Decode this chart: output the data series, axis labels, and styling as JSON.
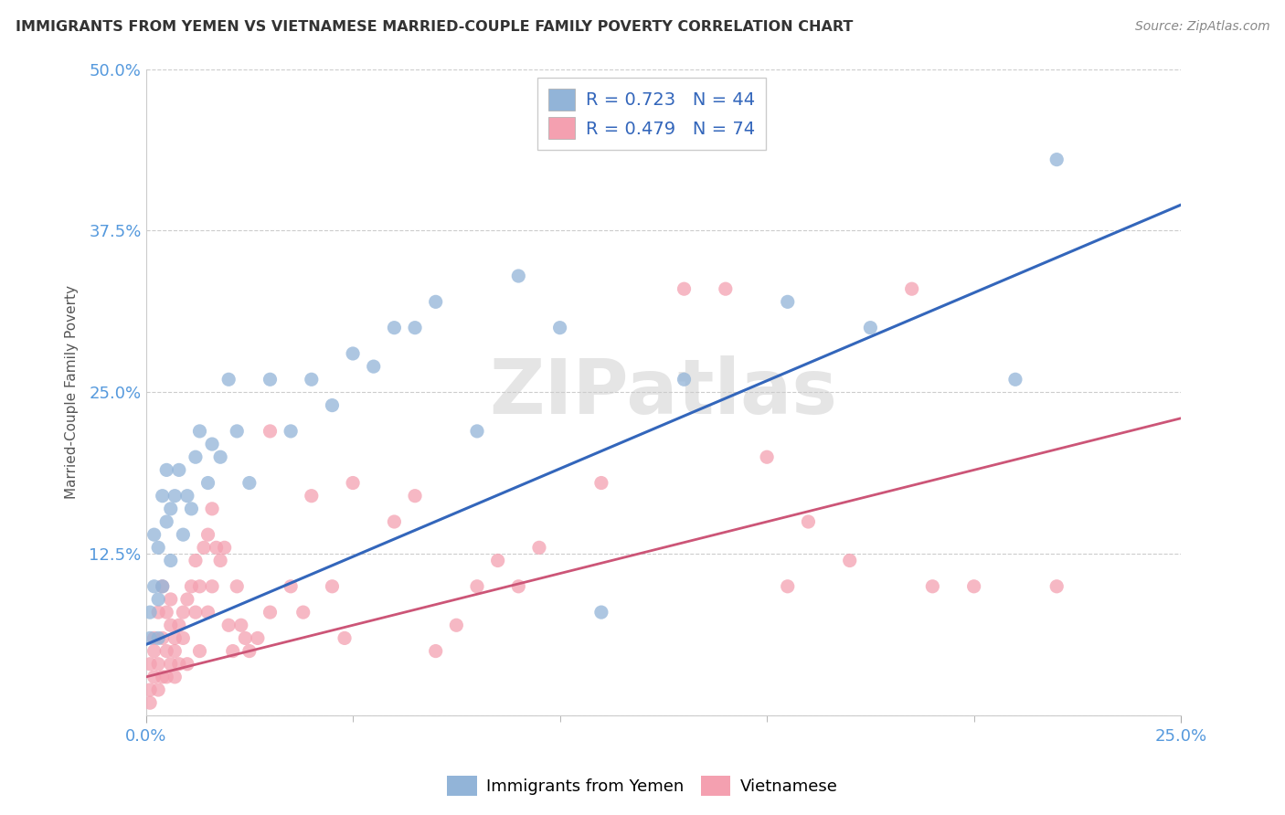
{
  "title": "IMMIGRANTS FROM YEMEN VS VIETNAMESE MARRIED-COUPLE FAMILY POVERTY CORRELATION CHART",
  "source": "Source: ZipAtlas.com",
  "ylabel": "Married-Couple Family Poverty",
  "xlim": [
    0.0,
    0.25
  ],
  "ylim": [
    0.0,
    0.5
  ],
  "xticks": [
    0.0,
    0.25
  ],
  "xtick_labels": [
    "0.0%",
    "25.0%"
  ],
  "yticks": [
    0.0,
    0.125,
    0.25,
    0.375,
    0.5
  ],
  "ytick_labels": [
    "",
    "12.5%",
    "25.0%",
    "37.5%",
    "50.0%"
  ],
  "blue_R": "0.723",
  "blue_N": "44",
  "pink_R": "0.479",
  "pink_N": "74",
  "blue_color": "#92B4D8",
  "pink_color": "#F4A0B0",
  "blue_line_color": "#3366BB",
  "pink_line_color": "#CC5577",
  "legend_label_blue": "Immigrants from Yemen",
  "legend_label_pink": "Vietnamese",
  "watermark": "ZIPatlas",
  "background_color": "#ffffff",
  "blue_line_x0": 0.0,
  "blue_line_y0": 0.055,
  "blue_line_x1": 0.25,
  "blue_line_y1": 0.395,
  "pink_line_x0": 0.0,
  "pink_line_y0": 0.03,
  "pink_line_x1": 0.25,
  "pink_line_y1": 0.23,
  "blue_scatter_x": [
    0.001,
    0.001,
    0.002,
    0.002,
    0.003,
    0.003,
    0.003,
    0.004,
    0.004,
    0.005,
    0.005,
    0.006,
    0.006,
    0.007,
    0.008,
    0.009,
    0.01,
    0.011,
    0.012,
    0.013,
    0.015,
    0.016,
    0.018,
    0.02,
    0.022,
    0.025,
    0.03,
    0.035,
    0.04,
    0.045,
    0.05,
    0.055,
    0.06,
    0.065,
    0.07,
    0.08,
    0.09,
    0.1,
    0.11,
    0.13,
    0.155,
    0.175,
    0.21,
    0.22
  ],
  "blue_scatter_y": [
    0.06,
    0.08,
    0.1,
    0.14,
    0.06,
    0.09,
    0.13,
    0.1,
    0.17,
    0.15,
    0.19,
    0.12,
    0.16,
    0.17,
    0.19,
    0.14,
    0.17,
    0.16,
    0.2,
    0.22,
    0.18,
    0.21,
    0.2,
    0.26,
    0.22,
    0.18,
    0.26,
    0.22,
    0.26,
    0.24,
    0.28,
    0.27,
    0.3,
    0.3,
    0.32,
    0.22,
    0.34,
    0.3,
    0.08,
    0.26,
    0.32,
    0.3,
    0.26,
    0.43
  ],
  "pink_scatter_x": [
    0.001,
    0.001,
    0.001,
    0.002,
    0.002,
    0.002,
    0.003,
    0.003,
    0.003,
    0.004,
    0.004,
    0.004,
    0.005,
    0.005,
    0.005,
    0.006,
    0.006,
    0.006,
    0.007,
    0.007,
    0.007,
    0.008,
    0.008,
    0.009,
    0.009,
    0.01,
    0.01,
    0.011,
    0.012,
    0.012,
    0.013,
    0.013,
    0.014,
    0.015,
    0.015,
    0.016,
    0.016,
    0.017,
    0.018,
    0.019,
    0.02,
    0.021,
    0.022,
    0.023,
    0.024,
    0.025,
    0.027,
    0.03,
    0.03,
    0.035,
    0.038,
    0.04,
    0.045,
    0.048,
    0.05,
    0.06,
    0.065,
    0.07,
    0.075,
    0.08,
    0.085,
    0.09,
    0.095,
    0.11,
    0.13,
    0.14,
    0.15,
    0.155,
    0.16,
    0.17,
    0.185,
    0.19,
    0.2,
    0.22
  ],
  "pink_scatter_y": [
    0.02,
    0.04,
    0.01,
    0.05,
    0.03,
    0.06,
    0.04,
    0.08,
    0.02,
    0.06,
    0.1,
    0.03,
    0.05,
    0.08,
    0.03,
    0.07,
    0.04,
    0.09,
    0.06,
    0.05,
    0.03,
    0.07,
    0.04,
    0.06,
    0.08,
    0.09,
    0.04,
    0.1,
    0.08,
    0.12,
    0.05,
    0.1,
    0.13,
    0.14,
    0.08,
    0.16,
    0.1,
    0.13,
    0.12,
    0.13,
    0.07,
    0.05,
    0.1,
    0.07,
    0.06,
    0.05,
    0.06,
    0.08,
    0.22,
    0.1,
    0.08,
    0.17,
    0.1,
    0.06,
    0.18,
    0.15,
    0.17,
    0.05,
    0.07,
    0.1,
    0.12,
    0.1,
    0.13,
    0.18,
    0.33,
    0.33,
    0.2,
    0.1,
    0.15,
    0.12,
    0.33,
    0.1,
    0.1,
    0.1
  ]
}
